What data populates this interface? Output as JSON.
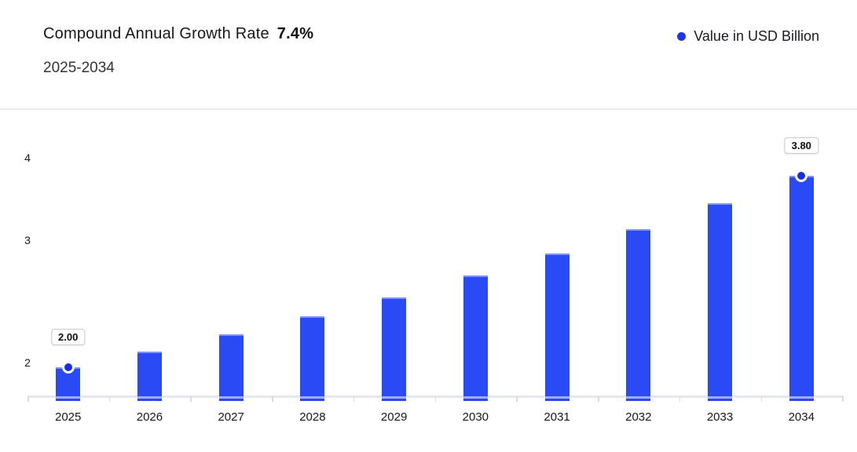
{
  "header": {
    "title": "Compound Annual Growth Rate",
    "title_value": "7.4%",
    "subtitle": "2025-2034",
    "legend_label": "Value in USD Billion"
  },
  "colors": {
    "bar": "#2a4af5",
    "bar_top_edge": "#8594f8",
    "marker_core": "#1031e8",
    "legend_dot": "#1d35f0",
    "axis_line": "#e4e7f0",
    "divider": "#ebebeb"
  },
  "chart_data": {
    "type": "bar",
    "title": "Compound Annual Growth Rate 7.4%",
    "subtitle": "2025-2034",
    "legend": [
      "Value in USD Billion"
    ],
    "legend_position": "top-right",
    "unit": "USD Billion",
    "cagr_percent": 7.4,
    "categories": [
      "2025",
      "2026",
      "2027",
      "2028",
      "2029",
      "2030",
      "2031",
      "2032",
      "2033",
      "2034"
    ],
    "series": [
      {
        "name": "Value in USD Billion",
        "values": [
          2.0,
          2.15,
          2.31,
          2.48,
          2.66,
          2.86,
          3.07,
          3.3,
          3.54,
          3.8
        ]
      }
    ],
    "yticks": [
      2,
      3,
      4
    ],
    "ylim": [
      1.7,
      4.2
    ],
    "grid": false,
    "data_labels": [
      {
        "category": "2025",
        "label": "2.00"
      },
      {
        "category": "2034",
        "label": "3.80"
      }
    ]
  }
}
